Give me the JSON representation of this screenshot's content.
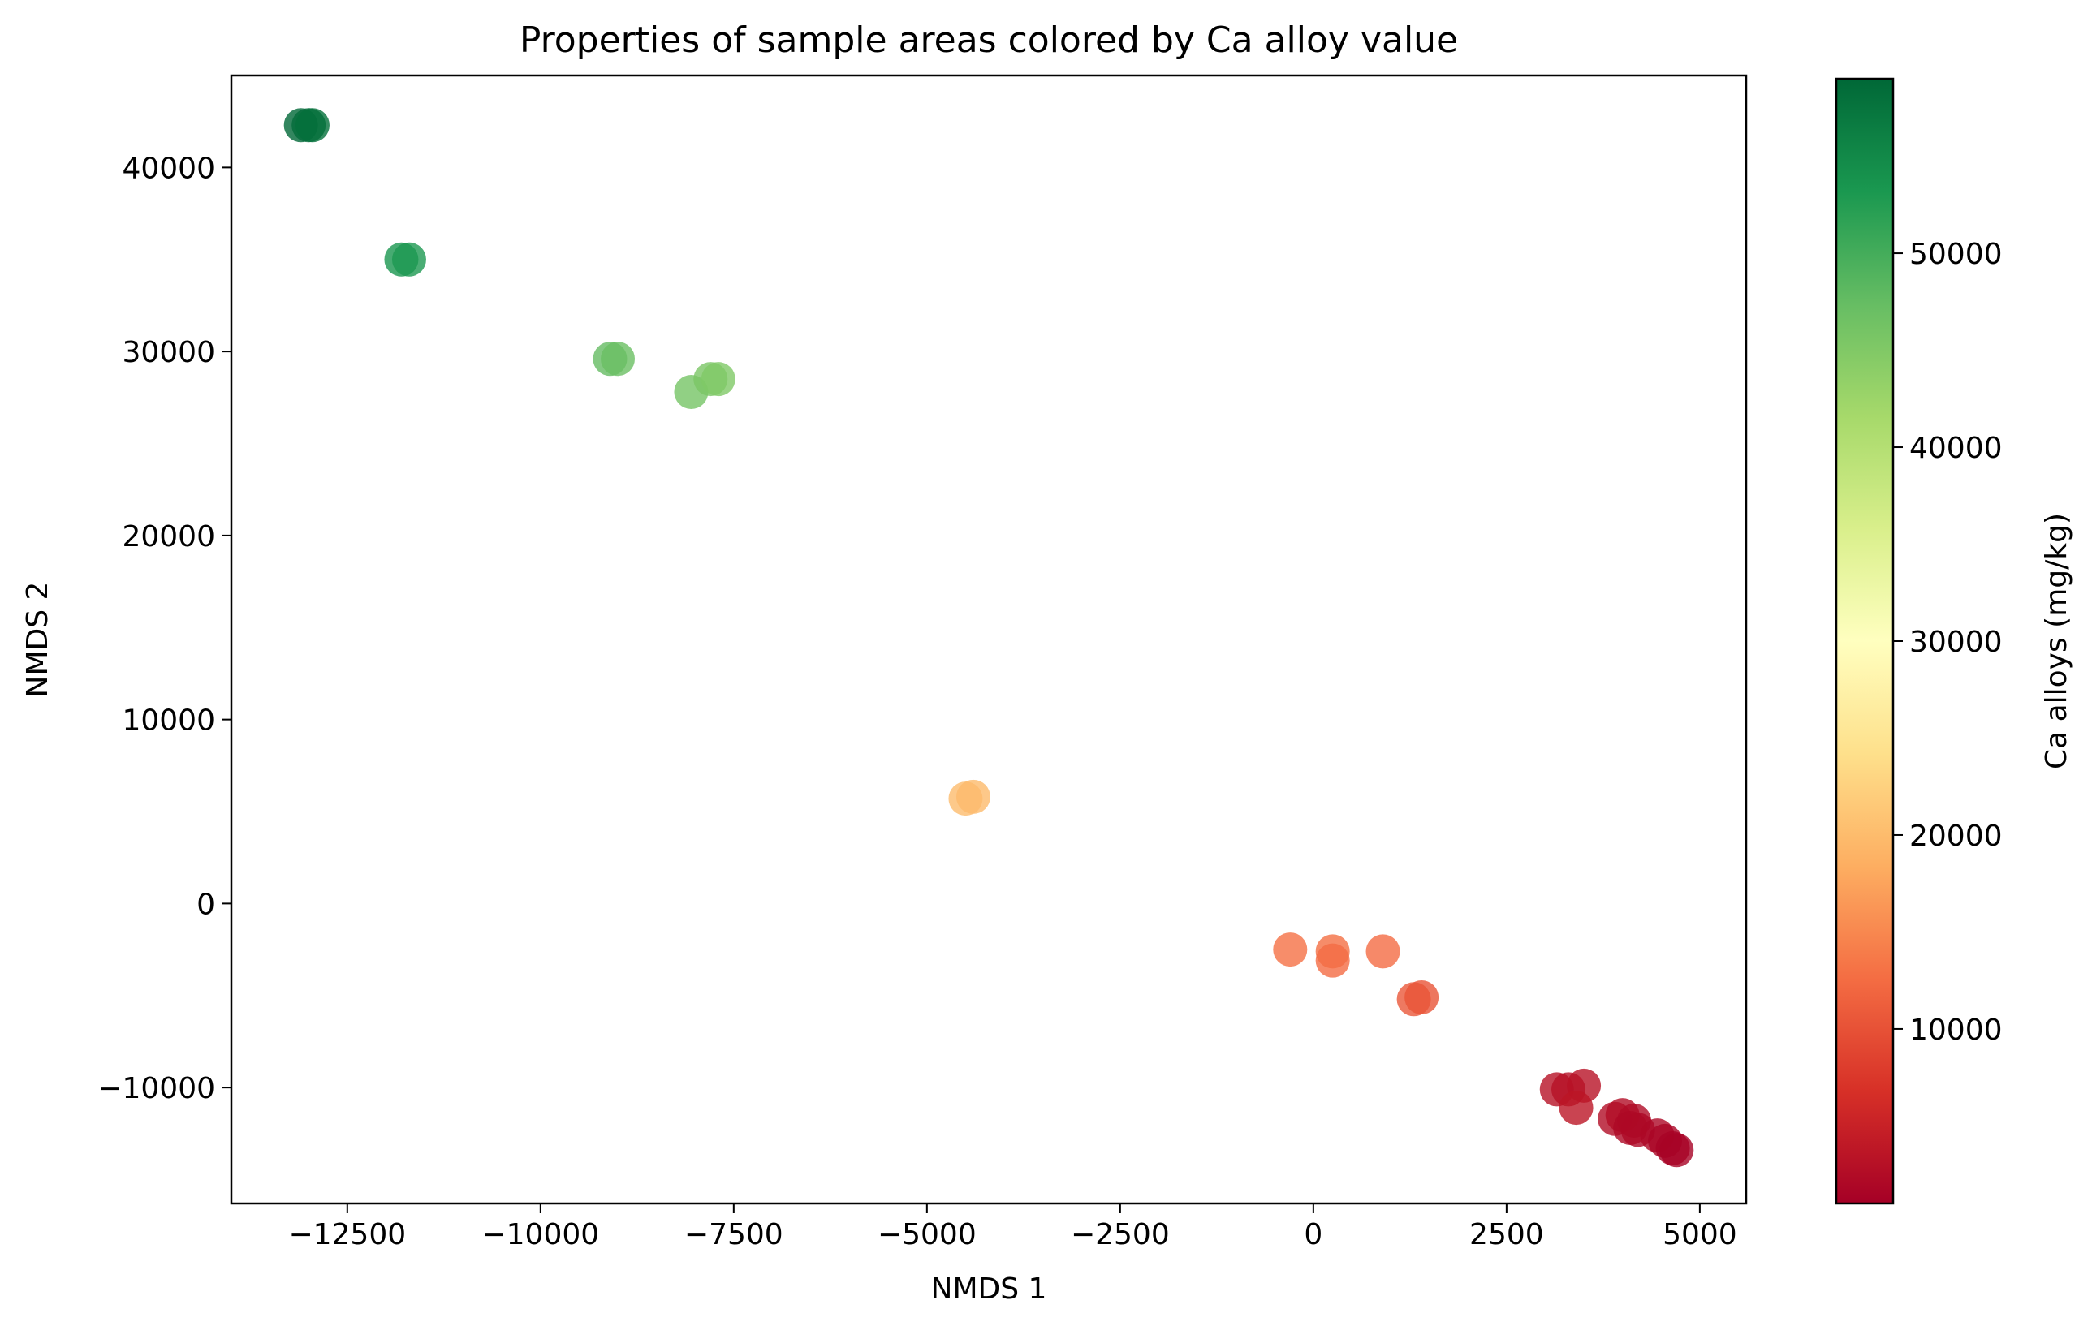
{
  "chart_data": {
    "type": "scatter",
    "title": "Properties of sample areas colored by Ca alloy value",
    "xlabel": "NMDS 1",
    "ylabel": "NMDS 2",
    "xlim": [
      -14000,
      5600
    ],
    "ylim": [
      -16300,
      45000
    ],
    "xticks": [
      -12500,
      -10000,
      -7500,
      -5000,
      -2500,
      0,
      2500,
      5000
    ],
    "xtick_labels": [
      "−12500",
      "−10000",
      "−7500",
      "−5000",
      "−2500",
      "0",
      "2500",
      "5000"
    ],
    "yticks": [
      -10000,
      0,
      10000,
      20000,
      30000,
      40000
    ],
    "ytick_labels": [
      "−10000",
      "0",
      "10000",
      "20000",
      "30000",
      "40000"
    ],
    "colorbar": {
      "label": "Ca alloys (mg/kg)",
      "colormap": "RdYlGn",
      "range": [
        1000,
        59000
      ],
      "ticks": [
        10000,
        20000,
        30000,
        40000,
        50000
      ],
      "tick_labels": [
        "10000",
        "20000",
        "30000",
        "40000",
        "50000"
      ]
    },
    "grid": false,
    "points": [
      {
        "x": -13100,
        "y": 42300,
        "c": 59000
      },
      {
        "x": -13000,
        "y": 42300,
        "c": 58500
      },
      {
        "x": -12950,
        "y": 42300,
        "c": 58000
      },
      {
        "x": -11800,
        "y": 35000,
        "c": 53500
      },
      {
        "x": -11700,
        "y": 35000,
        "c": 53000
      },
      {
        "x": -9100,
        "y": 29600,
        "c": 47500
      },
      {
        "x": -9000,
        "y": 29600,
        "c": 47000
      },
      {
        "x": -8050,
        "y": 27800,
        "c": 46000
      },
      {
        "x": -7800,
        "y": 28500,
        "c": 45500
      },
      {
        "x": -7700,
        "y": 28500,
        "c": 45000
      },
      {
        "x": -4500,
        "y": 5700,
        "c": 20000
      },
      {
        "x": -4400,
        "y": 5800,
        "c": 19800
      },
      {
        "x": -300,
        "y": -2500,
        "c": 13000
      },
      {
        "x": 250,
        "y": -2600,
        "c": 12800
      },
      {
        "x": 250,
        "y": -3100,
        "c": 12500
      },
      {
        "x": 900,
        "y": -2600,
        "c": 12500
      },
      {
        "x": 1300,
        "y": -5200,
        "c": 10500
      },
      {
        "x": 1400,
        "y": -5100,
        "c": 10200
      },
      {
        "x": 3150,
        "y": -10100,
        "c": 3000
      },
      {
        "x": 3300,
        "y": -10100,
        "c": 2900
      },
      {
        "x": 3500,
        "y": -9900,
        "c": 3200
      },
      {
        "x": 3400,
        "y": -11100,
        "c": 3500
      },
      {
        "x": 3900,
        "y": -11700,
        "c": 2500
      },
      {
        "x": 4000,
        "y": -11500,
        "c": 2400
      },
      {
        "x": 4150,
        "y": -11800,
        "c": 2200
      },
      {
        "x": 4200,
        "y": -12300,
        "c": 2000
      },
      {
        "x": 4100,
        "y": -12200,
        "c": 2100
      },
      {
        "x": 4450,
        "y": -12600,
        "c": 1800
      },
      {
        "x": 4550,
        "y": -12900,
        "c": 1600
      },
      {
        "x": 4650,
        "y": -13300,
        "c": 1400
      },
      {
        "x": 4700,
        "y": -13400,
        "c": 1200
      }
    ]
  }
}
